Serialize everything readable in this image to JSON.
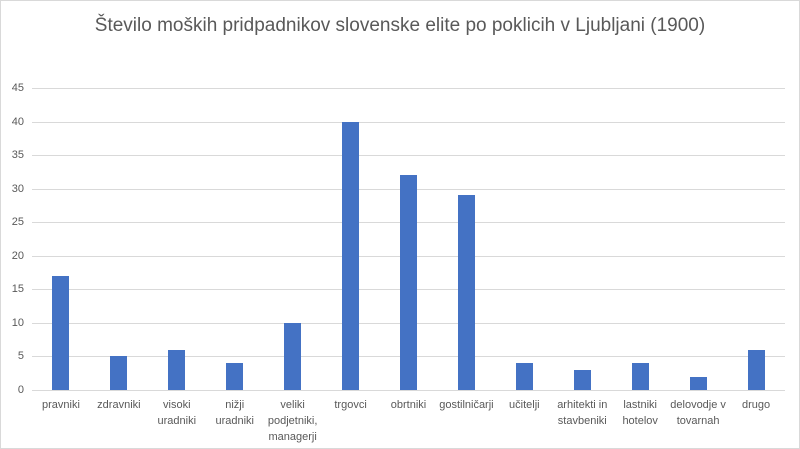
{
  "chart_data": {
    "type": "bar",
    "title": "Število moških pridpadnikov slovenske elite po poklicih v Ljubljani (1900)",
    "categories": [
      "pravniki",
      "zdravniki",
      "visoki uradniki",
      "nižji uradniki",
      "veliki podjetniki, managerji",
      "trgovci",
      "obrtniki",
      "gostilničarji",
      "učitelji",
      "arhitekti in stavbeniki",
      "lastniki hotelov",
      "delovodje v tovarnah",
      "drugo"
    ],
    "values": [
      17,
      5,
      6,
      4,
      10,
      40,
      32,
      29,
      4,
      3,
      4,
      2,
      6
    ],
    "xlabel": "",
    "ylabel": "",
    "ylim": [
      0,
      45
    ],
    "ytick_step": 5,
    "yticks": [
      0,
      5,
      10,
      15,
      20,
      25,
      30,
      35,
      40,
      45
    ],
    "grid": true,
    "legend": false,
    "bar_color": "#4472C4",
    "gridline_color": "#D9D9D9",
    "text_color": "#595959",
    "border_color": "#D9D9D9",
    "background_color": "#FFFFFF"
  }
}
